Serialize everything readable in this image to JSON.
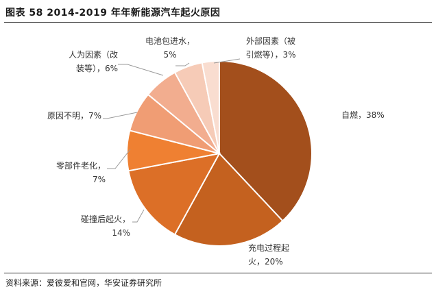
{
  "header": {
    "title": "图表 58  2014-2019 年年新能源汽车起火原因"
  },
  "footer": {
    "source": "资料来源：爱彼爱和官网，华安证券研究所"
  },
  "chart_data": {
    "type": "pie",
    "title": "2014-2019 年年新能源汽车起火原因",
    "unit": "%",
    "start": "12 o'clock, clockwise",
    "slices": [
      {
        "name": "自燃",
        "value": 38,
        "color": "#a34f1c",
        "label_lines": [
          "自燃，38%"
        ]
      },
      {
        "name": "充电过程起火",
        "value": 20,
        "color": "#c4611f",
        "label_lines": [
          "充电过程起",
          "火，20%"
        ]
      },
      {
        "name": "碰撞后起火",
        "value": 14,
        "color": "#dc6f27",
        "label_lines": [
          "碰撞后起火，",
          "14%"
        ]
      },
      {
        "name": "零部件老化",
        "value": 7,
        "color": "#ef8032",
        "label_lines": [
          "零部件老化，",
          "7%"
        ]
      },
      {
        "name": "原因不明",
        "value": 7,
        "color": "#f09d74",
        "label_lines": [
          "原因不明，7%"
        ]
      },
      {
        "name": "人为因素（改装等）",
        "value": 6,
        "color": "#f2ad8f",
        "label_lines": [
          "人为因素（改",
          "装等），6%"
        ]
      },
      {
        "name": "电池包进水",
        "value": 5,
        "color": "#f6cbb7",
        "label_lines": [
          "电池包进水，",
          "5%"
        ]
      },
      {
        "name": "外部因素（被引燃等）",
        "value": 3,
        "color": "#f9ddd0",
        "label_lines": [
          "外部因素（被",
          "引燃等），3%"
        ]
      }
    ]
  }
}
